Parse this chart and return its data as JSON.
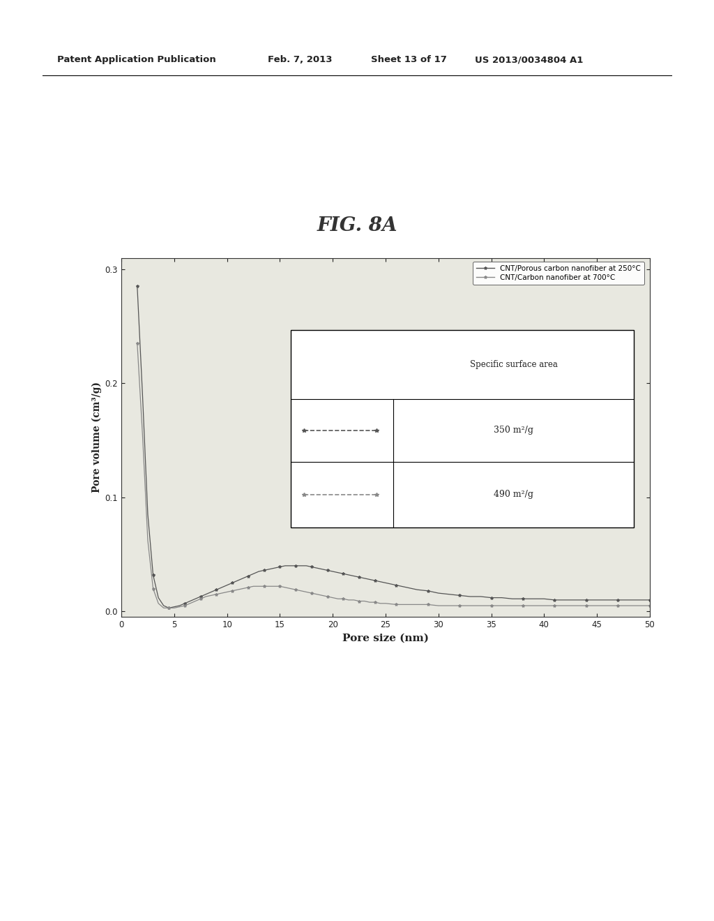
{
  "fig_label": "FIG. 8A",
  "patent_header": "Patent Application Publication",
  "patent_date": "Feb. 7, 2013",
  "patent_sheet": "Sheet 13 of 17",
  "patent_number": "US 2013/0034804 A1",
  "xlabel": "Pore size (nm)",
  "ylabel": "Pore volume (cm³/g)",
  "xlim": [
    0,
    50
  ],
  "ylim": [
    -0.005,
    0.31
  ],
  "xticks": [
    0,
    5,
    10,
    15,
    20,
    25,
    30,
    35,
    40,
    45,
    50
  ],
  "yticks": [
    0.0,
    0.1,
    0.2,
    0.3
  ],
  "legend1_label": "CNT/Porous carbon nanofiber at 250°C",
  "legend2_label": "CNT/Carbon nanofiber at 700°C",
  "table_header": "Specific surface area",
  "table_row1": "350 m²/g",
  "table_row2": "490 m²/g",
  "color1": "#555555",
  "color2": "#888888",
  "bg_color": "#e8e8e0",
  "series1_x": [
    1.5,
    2.0,
    2.5,
    3.0,
    3.5,
    4.0,
    4.5,
    5.0,
    5.5,
    6.0,
    6.5,
    7.0,
    7.5,
    8.0,
    8.5,
    9.0,
    9.5,
    10.0,
    10.5,
    11.0,
    11.5,
    12.0,
    12.5,
    13.0,
    13.5,
    14.0,
    14.5,
    15.0,
    15.5,
    16.0,
    16.5,
    17.0,
    17.5,
    18.0,
    18.5,
    19.0,
    19.5,
    20.0,
    20.5,
    21.0,
    21.5,
    22.0,
    22.5,
    23.0,
    23.5,
    24.0,
    24.5,
    25.0,
    26.0,
    27.0,
    28.0,
    29.0,
    30.0,
    31.0,
    32.0,
    33.0,
    34.0,
    35.0,
    36.0,
    37.0,
    38.0,
    39.0,
    40.0,
    41.0,
    42.0,
    43.0,
    44.0,
    45.0,
    46.0,
    47.0,
    48.0,
    49.0,
    50.0
  ],
  "series1_y": [
    0.285,
    0.19,
    0.085,
    0.032,
    0.012,
    0.005,
    0.003,
    0.004,
    0.005,
    0.007,
    0.009,
    0.011,
    0.013,
    0.015,
    0.017,
    0.019,
    0.021,
    0.023,
    0.025,
    0.027,
    0.029,
    0.031,
    0.033,
    0.035,
    0.036,
    0.037,
    0.038,
    0.039,
    0.04,
    0.04,
    0.04,
    0.04,
    0.04,
    0.039,
    0.038,
    0.037,
    0.036,
    0.035,
    0.034,
    0.033,
    0.032,
    0.031,
    0.03,
    0.029,
    0.028,
    0.027,
    0.026,
    0.025,
    0.023,
    0.021,
    0.019,
    0.018,
    0.016,
    0.015,
    0.014,
    0.013,
    0.013,
    0.012,
    0.012,
    0.011,
    0.011,
    0.011,
    0.011,
    0.01,
    0.01,
    0.01,
    0.01,
    0.01,
    0.01,
    0.01,
    0.01,
    0.01,
    0.01
  ],
  "series2_x": [
    1.5,
    2.0,
    2.5,
    3.0,
    3.5,
    4.0,
    4.5,
    5.0,
    5.5,
    6.0,
    6.5,
    7.0,
    7.5,
    8.0,
    8.5,
    9.0,
    9.5,
    10.0,
    10.5,
    11.0,
    11.5,
    12.0,
    12.5,
    13.0,
    13.5,
    14.0,
    14.5,
    15.0,
    15.5,
    16.0,
    16.5,
    17.0,
    17.5,
    18.0,
    18.5,
    19.0,
    19.5,
    20.0,
    20.5,
    21.0,
    21.5,
    22.0,
    22.5,
    23.0,
    23.5,
    24.0,
    24.5,
    25.0,
    26.0,
    27.0,
    28.0,
    29.0,
    30.0,
    31.0,
    32.0,
    33.0,
    34.0,
    35.0,
    36.0,
    37.0,
    38.0,
    39.0,
    40.0,
    41.0,
    42.0,
    43.0,
    44.0,
    45.0,
    46.0,
    47.0,
    48.0,
    49.0,
    50.0
  ],
  "series2_y": [
    0.235,
    0.155,
    0.062,
    0.02,
    0.007,
    0.003,
    0.003,
    0.003,
    0.004,
    0.005,
    0.007,
    0.009,
    0.011,
    0.013,
    0.014,
    0.015,
    0.016,
    0.017,
    0.018,
    0.019,
    0.02,
    0.021,
    0.022,
    0.022,
    0.022,
    0.022,
    0.022,
    0.022,
    0.021,
    0.02,
    0.019,
    0.018,
    0.017,
    0.016,
    0.015,
    0.014,
    0.013,
    0.012,
    0.011,
    0.011,
    0.01,
    0.01,
    0.009,
    0.009,
    0.008,
    0.008,
    0.007,
    0.007,
    0.006,
    0.006,
    0.006,
    0.006,
    0.005,
    0.005,
    0.005,
    0.005,
    0.005,
    0.005,
    0.005,
    0.005,
    0.005,
    0.005,
    0.005,
    0.005,
    0.005,
    0.005,
    0.005,
    0.005,
    0.005,
    0.005,
    0.005,
    0.005,
    0.005
  ]
}
